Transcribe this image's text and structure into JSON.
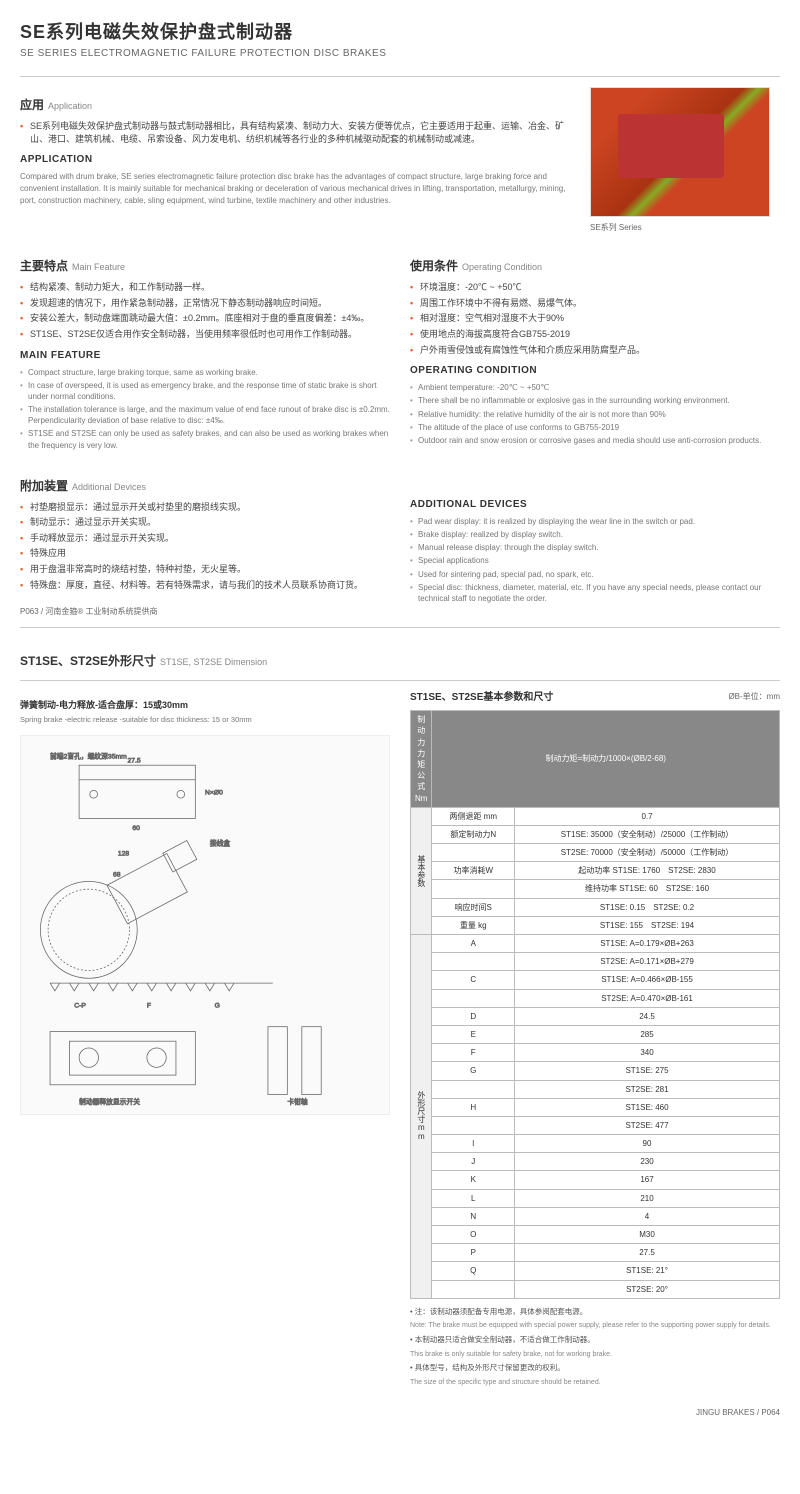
{
  "header": {
    "title_cn": "SE系列电磁失效保护盘式制动器",
    "title_en": "SE SERIES ELECTROMAGNETIC FAILURE PROTECTION DISC BRAKES"
  },
  "app": {
    "title_cn": "应用",
    "title_sub": "Application",
    "bullets_cn": [
      "SE系列电磁失效保护盘式制动器与鼓式制动器相比，具有结构紧凑、制动力大、安装方便等优点，它主要适用于起重、运输、冶金、矿山、港口、建筑机械、电缆、吊索设备、风力发电机、纺织机械等各行业的多种机械驱动配套的机械制动或减速。"
    ],
    "title_en": "APPLICATION",
    "para_en": "Compared with drum brake, SE series electromagnetic failure protection disc brake has the advantages of compact structure, large braking force and convenient installation. It is mainly suitable for mechanical braking or deceleration of various mechanical drives in lifting, transportation, metallurgy, mining, port, construction machinery, cable, sling equipment, wind turbine, textile machinery and other industries."
  },
  "img_caption": "SE系列 Series",
  "feat": {
    "title_cn": "主要特点",
    "title_sub": "Main Feature",
    "bullets_cn": [
      "结构紧凑、制动力矩大，和工作制动器一样。",
      "发现超速的情况下，用作紧急制动器，正常情况下静态制动器响应时间短。",
      "安装公差大，制动盘端面跳动最大值：±0.2mm。底座相对于盘的垂直度偏差：±4‰。",
      "ST1SE、ST2SE仅适合用作安全制动器，当使用频率很低时也可用作工作制动器。"
    ],
    "title_en": "MAIN FEATURE",
    "bullets_en": [
      "Compact structure, large braking torque, same as working brake.",
      "In case of overspeed, it is used as emergency brake, and the response time of static brake is short under normal conditions.",
      "The installation tolerance is large, and the maximum value of end face runout of brake disc is ±0.2mm. Perpendicularity deviation of base relative to disc: ±4‰.",
      "ST1SE and ST2SE can only be used as safety brakes, and can also be used as working brakes when the frequency is very low."
    ]
  },
  "cond": {
    "title_cn": "使用条件",
    "title_sub": "Operating Condition",
    "bullets_cn": [
      "环境温度：-20℃ ~ +50℃",
      "周围工作环境中不得有易燃、易爆气体。",
      "相对湿度：空气相对湿度不大于90%",
      "使用地点的海拔高度符合GB755-2019",
      "户外雨雪侵蚀或有腐蚀性气体和介质应采用防腐型产品。"
    ],
    "title_en": "OPERATING CONDITION",
    "bullets_en": [
      "Ambient temperature: -20℃ ~ +50℃",
      "There shall be no inflammable or explosive gas in the surrounding working environment.",
      "Relative humidity: the relative humidity of the air is not more than 90%",
      "The altitude of the place of use conforms to GB755-2019",
      "Outdoor rain and snow erosion or corrosive gases and media should use anti-corrosion products."
    ]
  },
  "addl": {
    "title_cn": "附加装置",
    "title_sub": "Additional Devices",
    "bullets_cn": [
      "衬垫磨损显示：通过显示开关或衬垫里的磨损线实现。",
      "制动显示：通过显示开关实现。",
      "手动释放显示：通过显示开关实现。",
      "特殊应用",
      "用于盘温非常高时的烧结衬垫，特种衬垫，无火星等。",
      "特殊盘：厚度，直径、材料等。若有特殊需求，请与我们的技术人员联系协商订货。"
    ],
    "title_en": "ADDITIONAL DEVICES",
    "bullets_en": [
      "Pad wear display: it is realized by displaying the wear line in the switch or pad.",
      "Brake display: realized by display switch.",
      "Manual release display: through the display switch.",
      "Special applications",
      "Used for sintering pad, special pad, no spark, etc.",
      "Special disc: thickness, diameter, material, etc. If you have any special needs, please contact our technical staff to negotiate the order."
    ]
  },
  "page_ref": "P063 / 河南金箍® 工业制动系统提供商",
  "dim": {
    "title_cn": "ST1SE、ST2SE外形尺寸",
    "title_sub": "ST1SE, ST2SE Dimension",
    "subtitle_cn": "弹簧制动-电力释放-适合盘厚：15或30mm",
    "subtitle_en": "Spring brake -electric release -suitable for disc thickness: 15 or 30mm",
    "drawing_labels": {
      "top_note": "前端2盲孔，螺纹深35mm",
      "d1": "27.5",
      "d2": "60",
      "d3": "N×Ø0",
      "d4": "128",
      "d5": "68",
      "box": "接线盒",
      "cp": "C-P",
      "f": "F",
      "g": "G",
      "release": "制动器释放显示开关",
      "clamp": "卡钳轴"
    }
  },
  "ptable": {
    "title": "ST1SE、ST2SE基本参数和尺寸",
    "unit": "ØB-单位：mm",
    "h1": "制动力力矩公式Nm",
    "h2": "制动力矩=制动力/1000×(ØB/2-68)",
    "g1": "基本参数",
    "rows1": [
      [
        "两侧退距 mm",
        "0.7"
      ],
      [
        "额定制动力N",
        "ST1SE: 35000（安全制动）/25000（工作制动）"
      ],
      [
        "",
        "ST2SE: 70000（安全制动）/50000（工作制动）"
      ],
      [
        "功率消耗W",
        "起动功率 ST1SE: 1760　ST2SE: 2830"
      ],
      [
        "",
        "维持功率 ST1SE: 60　ST2SE: 160"
      ],
      [
        "响应时间S",
        "ST1SE: 0.15　ST2SE: 0.2"
      ],
      [
        "重量 kg",
        "ST1SE: 155　ST2SE: 194"
      ]
    ],
    "g2": "外形尺寸mm",
    "rows2": [
      [
        "A",
        "ST1SE: A=0.179×ØB+263"
      ],
      [
        "",
        "ST2SE: A=0.171×ØB+279"
      ],
      [
        "C",
        "ST1SE: A=0.466×ØB-155"
      ],
      [
        "",
        "ST2SE: A=0.470×ØB-161"
      ],
      [
        "D",
        "24.5"
      ],
      [
        "E",
        "285"
      ],
      [
        "F",
        "340"
      ],
      [
        "G",
        "ST1SE: 275"
      ],
      [
        "",
        "ST2SE: 281"
      ],
      [
        "H",
        "ST1SE: 460"
      ],
      [
        "",
        "ST2SE: 477"
      ],
      [
        "I",
        "90"
      ],
      [
        "J",
        "230"
      ],
      [
        "K",
        "167"
      ],
      [
        "L",
        "210"
      ],
      [
        "N",
        "4"
      ],
      [
        "O",
        "M30"
      ],
      [
        "P",
        "27.5"
      ],
      [
        "Q",
        "ST1SE: 21°"
      ],
      [
        "",
        "ST2SE: 20°"
      ]
    ]
  },
  "notes": [
    {
      "cn": "• 注：该制动器须配备专用电源，具体参阅配套电源。",
      "en": "Note: The brake must be equipped with special power supply, please refer to the supporting power supply for details."
    },
    {
      "cn": "• 本制动器只适合做安全制动器，不适合做工作制动器。",
      "en": "This brake is only suitable for safety brake, not for working brake."
    },
    {
      "cn": "• 具体型号，结构及外形尺寸保留更改的权利。",
      "en": "The size of the specific type and structure should be retained."
    }
  ],
  "footer": "JINGU BRAKES / P064"
}
